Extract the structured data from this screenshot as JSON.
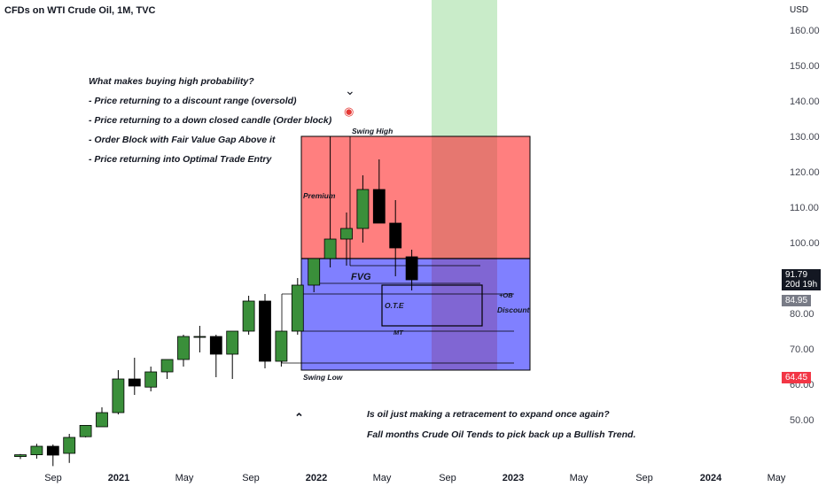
{
  "header": {
    "title": "CFDs on WTI Crude Oil, 1M, TVC",
    "currency": "USD"
  },
  "colors": {
    "bull": "#3a8f3a",
    "bear": "#000000",
    "premium": "#ff7f7f",
    "discount": "#8080ff",
    "target": "#c9ecc9"
  },
  "chart_data": {
    "type": "candlestick",
    "yaxis": {
      "ticks": [
        "50.00",
        "60.00",
        "70.00",
        "80.00",
        "90.00",
        "100.00",
        "110.00",
        "120.00",
        "130.00",
        "140.00",
        "150.00",
        "160.00"
      ],
      "ylim": [
        36.5,
        162.5
      ]
    },
    "xaxis": {
      "labels": [
        "Sep",
        "2021",
        "May",
        "Sep",
        "2022",
        "May",
        "Sep",
        "2023",
        "May",
        "Sep",
        "2024",
        "May"
      ]
    },
    "candles": [
      {
        "o": 39.6,
        "h": 40.3,
        "l": 38.9,
        "c": 40.1
      },
      {
        "o": 40.1,
        "h": 43.2,
        "l": 39.0,
        "c": 42.5
      },
      {
        "o": 42.5,
        "h": 43.0,
        "l": 36.9,
        "c": 40.0
      },
      {
        "o": 40.5,
        "h": 46.0,
        "l": 37.8,
        "c": 45.0
      },
      {
        "o": 45.2,
        "h": 48.0,
        "l": 45.0,
        "c": 48.4
      },
      {
        "o": 48.0,
        "h": 53.5,
        "l": 48.0,
        "c": 52.0
      },
      {
        "o": 52.0,
        "h": 64.0,
        "l": 51.5,
        "c": 61.5
      },
      {
        "o": 61.5,
        "h": 67.5,
        "l": 57.0,
        "c": 59.5
      },
      {
        "o": 59.2,
        "h": 65.0,
        "l": 58.0,
        "c": 63.5
      },
      {
        "o": 63.5,
        "h": 67.0,
        "l": 61.5,
        "c": 67.0
      },
      {
        "o": 67.0,
        "h": 74.0,
        "l": 65.0,
        "c": 73.5
      },
      {
        "o": 73.5,
        "h": 76.5,
        "l": 69.0,
        "c": 73.5
      },
      {
        "o": 73.5,
        "h": 74.0,
        "l": 62.0,
        "c": 68.5
      },
      {
        "o": 68.5,
        "h": 75.0,
        "l": 61.5,
        "c": 75.0
      },
      {
        "o": 75.0,
        "h": 85.0,
        "l": 74.0,
        "c": 83.5
      },
      {
        "o": 83.5,
        "h": 85.5,
        "l": 64.5,
        "c": 66.5
      },
      {
        "o": 66.5,
        "h": 75.0,
        "l": 65.0,
        "c": 75.0
      },
      {
        "o": 75.0,
        "h": 90.0,
        "l": 74.0,
        "c": 88.0
      },
      {
        "o": 88.0,
        "h": 95.5,
        "l": 86.0,
        "c": 95.5
      },
      {
        "o": 95.5,
        "h": 130.0,
        "l": 93.0,
        "c": 101.0
      },
      {
        "o": 101.0,
        "h": 108.5,
        "l": 93.5,
        "c": 104.0
      },
      {
        "o": 104.0,
        "h": 119.0,
        "l": 100.0,
        "c": 115.0
      },
      {
        "o": 115.0,
        "h": 123.5,
        "l": 106.0,
        "c": 105.5
      },
      {
        "o": 105.5,
        "h": 112.0,
        "l": 90.5,
        "c": 98.5
      },
      {
        "o": 96.0,
        "h": 98.0,
        "l": 86.5,
        "c": 89.5
      }
    ],
    "last_price": "91.79",
    "countdown": "20d 19h",
    "price_tags": [
      "84.95",
      "64.45"
    ],
    "annotations": {
      "swing_high": "Swing High",
      "swing_low": "Swing Low",
      "premium": "Premium",
      "discount": "Discount",
      "fvg": "FVG",
      "ote": "O.T.E",
      "ob": "+OB",
      "mt": "MT"
    }
  },
  "notes": [
    "What makes buying high probability?",
    "- Price returning to a discount range (oversold)",
    "- Price returning to a down closed candle (Order block)",
    "- Order Block with Fair Value Gap Above it",
    "- Price returning into Optimal Trade Entry"
  ],
  "bottom_notes": [
    "Is oil just making a retracement to expand once again?",
    "Fall months Crude Oil Tends to pick back up a Bullish Trend."
  ]
}
